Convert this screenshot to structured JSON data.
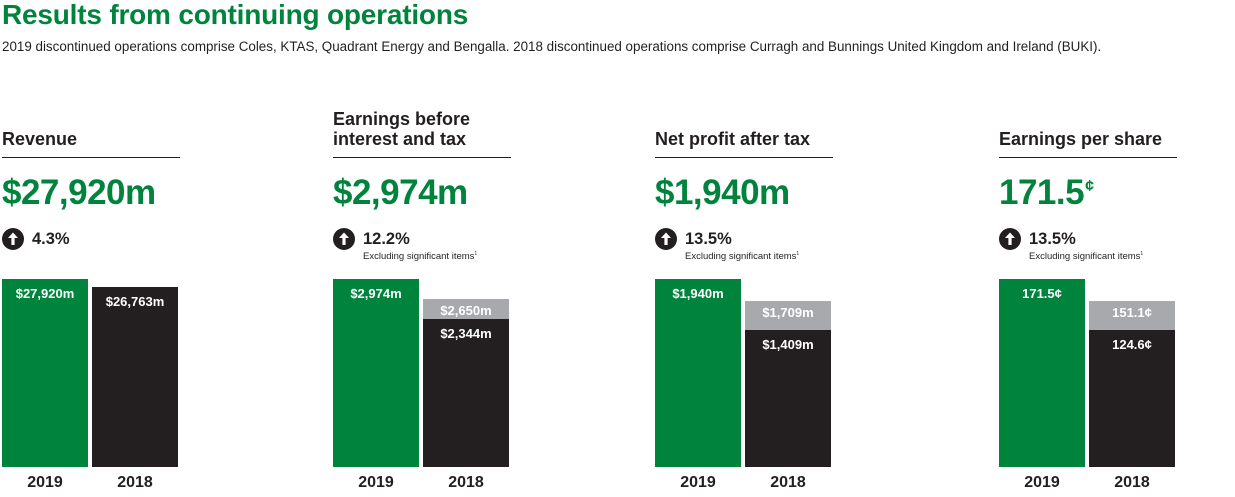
{
  "title": "Results from continuing operations",
  "subtitle": "2019 discontinued operations comprise Coles, KTAS, Quadrant Energy and Bengalla. 2018 discontinued operations comprise Curragh and Bunnings United Kingdom and Ireland (BUKI).",
  "colors": {
    "accent": "#00843d",
    "bar_2019": "#00843d",
    "bar_2018": "#231f20",
    "bar_excl": "#a7a9ac"
  },
  "chart_data": [
    {
      "type": "bar",
      "title": "Revenue",
      "headline": "$27,920m",
      "headline_unit": "",
      "change": "4.3%",
      "change_direction": "up",
      "change_note": "",
      "categories": [
        "2019",
        "2018"
      ],
      "series": [
        {
          "values": [
            27920,
            26763
          ]
        }
      ],
      "bar_labels": [
        "$27,920m",
        "$26,763m"
      ],
      "excl_value_2018": null,
      "excl_label_2018": ""
    },
    {
      "type": "bar",
      "title": "Earnings before interest and tax",
      "title_lines": [
        "Earnings before",
        "interest and tax"
      ],
      "headline": "$2,974m",
      "headline_unit": "",
      "change": "12.2%",
      "change_direction": "up",
      "change_note": "Excluding significant items",
      "change_note_ref": "1",
      "categories": [
        "2019",
        "2018"
      ],
      "series": [
        {
          "values": [
            2974,
            2344
          ]
        }
      ],
      "bar_labels": [
        "$2,974m",
        "$2,344m"
      ],
      "excl_value_2018": 2650,
      "excl_label_2018": "$2,650m"
    },
    {
      "type": "bar",
      "title": "Net profit after tax",
      "headline": "$1,940m",
      "headline_unit": "",
      "change": "13.5%",
      "change_direction": "up",
      "change_note": "Excluding significant items",
      "change_note_ref": "1",
      "categories": [
        "2019",
        "2018"
      ],
      "series": [
        {
          "values": [
            1940,
            1409
          ]
        }
      ],
      "bar_labels": [
        "$1,940m",
        "$1,409m"
      ],
      "excl_value_2018": 1709,
      "excl_label_2018": "$1,709m"
    },
    {
      "type": "bar",
      "title": "Earnings per share",
      "headline": "171.5",
      "headline_unit": "¢",
      "change": "13.5%",
      "change_direction": "up",
      "change_note": "Excluding significant items",
      "change_note_ref": "1",
      "categories": [
        "2019",
        "2018"
      ],
      "series": [
        {
          "values": [
            171.5,
            124.6
          ]
        }
      ],
      "bar_labels": [
        "171.5¢",
        "124.6¢"
      ],
      "excl_value_2018": 151.1,
      "excl_label_2018": "151.1¢"
    }
  ]
}
